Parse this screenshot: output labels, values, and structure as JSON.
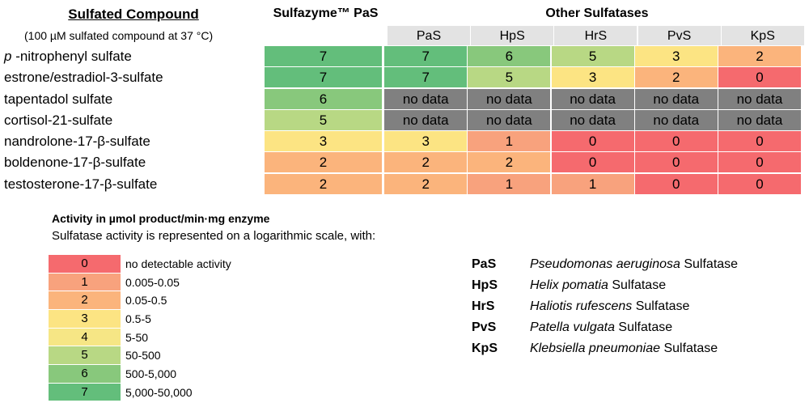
{
  "header": {
    "compound_title": "Sulfated Compound",
    "subtitle": "(100 µM sulfated compound at 37 °C)",
    "sulfazyme_title": "Sulfazyme™ PaS",
    "other_title": "Other Sulfatases"
  },
  "columns": [
    "PaS",
    "HpS",
    "HrS",
    "PvS",
    "KpS"
  ],
  "colors": {
    "0": "#f56a6e",
    "1": "#f8a27d",
    "2": "#fbb47c",
    "3": "#fce483",
    "4": "#f6e685",
    "5": "#b8d884",
    "6": "#88c87c",
    "7": "#63be7b",
    "no data": "#808080"
  },
  "rows": [
    {
      "prefix": "p",
      "name": " -nitrophenyl sulfate",
      "sulfazyme": "7",
      "others": [
        "7",
        "6",
        "5",
        "3",
        "2"
      ]
    },
    {
      "prefix": "",
      "name": "estrone/estradiol-3-sulfate",
      "sulfazyme": "7",
      "others": [
        "7",
        "5",
        "3",
        "2",
        "0"
      ]
    },
    {
      "prefix": "",
      "name": "tapentadol sulfate",
      "sulfazyme": "6",
      "others": [
        "no data",
        "no data",
        "no data",
        "no data",
        "no data"
      ]
    },
    {
      "prefix": "",
      "name": "cortisol-21-sulfate",
      "sulfazyme": "5",
      "others": [
        "no data",
        "no data",
        "no data",
        "no data",
        "no data"
      ]
    },
    {
      "prefix": "",
      "name": "nandrolone-17-β-sulfate",
      "sulfazyme": "3",
      "others": [
        "3",
        "1",
        "0",
        "0",
        "0"
      ]
    },
    {
      "prefix": "",
      "name": "boldenone-17-β-sulfate",
      "sulfazyme": "2",
      "others": [
        "2",
        "2",
        "0",
        "0",
        "0"
      ]
    },
    {
      "prefix": "",
      "name": "testosterone-17-β-sulfate",
      "sulfazyme": "2",
      "others": [
        "2",
        "1",
        "1",
        "0",
        "0"
      ]
    }
  ],
  "legend": {
    "title": "Activity in µmol product/min·mg enzyme",
    "description": "Sulfatase activity is represented on a logarithmic scale, with:",
    "items": [
      {
        "value": "0",
        "label": "no detectable activity"
      },
      {
        "value": "1",
        "label": "0.005-0.05"
      },
      {
        "value": "2",
        "label": "0.05-0.5"
      },
      {
        "value": "3",
        "label": "0.5-5"
      },
      {
        "value": "4",
        "label": "5-50"
      },
      {
        "value": "5",
        "label": "50-500"
      },
      {
        "value": "6",
        "label": "500-5,000"
      },
      {
        "value": "7",
        "label": "5,000-50,000"
      }
    ]
  },
  "abbreviations": [
    {
      "abbr": "PaS",
      "species": "Pseudomonas aeruginosa",
      "suffix": " Sulfatase"
    },
    {
      "abbr": "HpS",
      "species": "Helix pomatia",
      "suffix": " Sulfatase"
    },
    {
      "abbr": "HrS",
      "species": "Haliotis rufescens",
      "suffix": " Sulfatase"
    },
    {
      "abbr": "PvS",
      "species": "Patella vulgata",
      "suffix": " Sulfatase"
    },
    {
      "abbr": "KpS",
      "species": "Klebsiella pneumoniae",
      "suffix": " Sulfatase"
    }
  ]
}
